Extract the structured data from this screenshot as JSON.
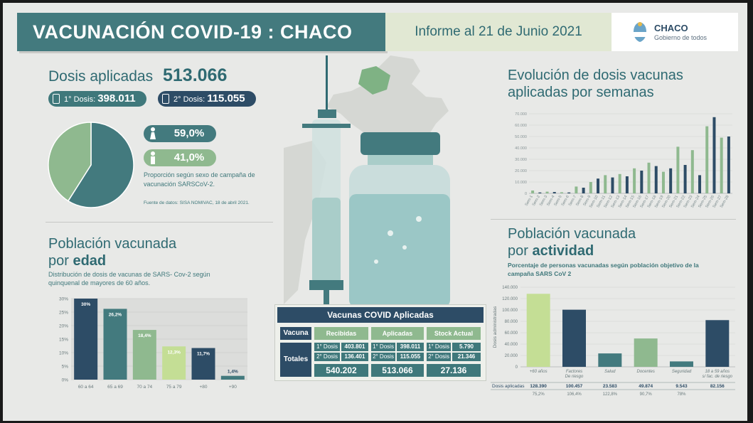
{
  "header": {
    "title": "VACUNACIÓN COVID-19 : CHACO",
    "date": "Informe al 21 de Junio 2021",
    "logo_name": "CHACO",
    "logo_sub": "Gobierno de todos"
  },
  "dosis": {
    "label": "Dosis aplicadas",
    "total": "513.066",
    "first_label": "1° Dosis:",
    "first_value": "398.011",
    "second_label": "2° Dosis:",
    "second_value": "115.055"
  },
  "sex": {
    "female_pct": "59,0%",
    "male_pct": "41,0%",
    "caption": "Proporción según sexo de campaña de vacunación SARSCoV-2.",
    "source": "Fuente de datos: SISA NOMIVAC, 18 de abril 2021."
  },
  "age": {
    "title_line1": "Población vacunada",
    "title_line2_pre": "por ",
    "title_line2_bold": "edad",
    "description": "Distribución de dosis de vacunas de SARS- Cov-2 según quinquenal de mayores de 60 años."
  },
  "vaccines_table": {
    "title": "Vacunas COVID Aplicadas",
    "col_vacuna": "Vacuna",
    "col_recibidas": "Recibidas",
    "col_aplicadas": "Aplicadas",
    "col_stock": "Stock Actual",
    "row_totales": "Totales",
    "d1_label": "1° Dosis",
    "d2_label": "2° Dosis",
    "recibidas_d1": "403.801",
    "recibidas_d2": "136.401",
    "aplicadas_d1": "398.011",
    "aplicadas_d2": "115.055",
    "stock_d1": "5.790",
    "stock_d2": "21.346",
    "recibidas_total": "540.202",
    "aplicadas_total": "513.066",
    "stock_total": "27.136"
  },
  "weekly": {
    "title": "Evolución de dosis vacunas aplicadas por semanas"
  },
  "activity": {
    "title_line1": "Población vacunada",
    "title_line2_pre": "por ",
    "title_line2_bold": "actividad",
    "description": "Porcentaje de personas vacunadas según población objetivo de la campaña SARS CoV 2",
    "table_header": "Dosis aplicadas",
    "ylabel": "Dosis administradas"
  },
  "colors": {
    "teal": "#437a7e",
    "navy": "#2d4c66",
    "green": "#8fb98f",
    "lime": "#c4de95",
    "mint": "#bfdcc4"
  },
  "chart_data": [
    {
      "type": "pie",
      "categories": [
        "Femenino",
        "Masculino"
      ],
      "values": [
        59.0,
        41.0
      ],
      "colors": [
        "#437a7e",
        "#8fb98f"
      ]
    },
    {
      "type": "bar",
      "categories": [
        "60 a 64",
        "65 a 69",
        "70 a 74",
        "75 a 79",
        "+80",
        "+90"
      ],
      "values": [
        30,
        26.2,
        18.4,
        12.3,
        11.7,
        1.4
      ],
      "labels": [
        "30%",
        "26,2%",
        "18,4%",
        "12,3%",
        "11,7%",
        "1,4%"
      ],
      "yticks": [
        "0%",
        "5%",
        "10%",
        "15%",
        "20%",
        "25%",
        "30%"
      ],
      "ylim": [
        0,
        30
      ]
    },
    {
      "type": "bar",
      "categories": [
        "Sem-1",
        "Sem-2",
        "Sem-3",
        "Sem-4",
        "Sem-5",
        "Sem-6",
        "Sem-7",
        "Sem-8",
        "Sem-9",
        "Sem-10",
        "Sem-11",
        "Sem-12",
        "Sem-13",
        "Sem-14",
        "Sem-15",
        "Sem-16",
        "Sem-17",
        "Sem-18",
        "Sem-19",
        "Sem-20",
        "Sem-21",
        "Sem-22",
        "Sem-23",
        "Sem-24",
        "Sem-25",
        "Sem-26",
        "Sem-27",
        "Sem-28"
      ],
      "values": [
        2500,
        800,
        1500,
        1200,
        1000,
        800,
        6000,
        5000,
        10000,
        13000,
        16000,
        14000,
        17000,
        15000,
        22000,
        20000,
        27000,
        24000,
        19000,
        22000,
        41000,
        25000,
        38000,
        16000,
        59000,
        67000,
        49000,
        50000
      ],
      "yticks": [
        "0",
        "10.000",
        "20.000",
        "30.000",
        "40.000",
        "50.000",
        "60.000",
        "70.000"
      ],
      "ylim": [
        0,
        70000
      ]
    },
    {
      "type": "bar",
      "categories": [
        "+60 años",
        "Factores De riesgo",
        "Salud",
        "Docentes",
        "Seguridad",
        "18 a 59 años s/ fac. de riesgo"
      ],
      "values": [
        128390,
        100457,
        23583,
        49874,
        9543,
        82156
      ],
      "value_labels": [
        "128.390",
        "100.457",
        "23.583",
        "49.874",
        "9.543",
        "82.156"
      ],
      "percent_labels": [
        "75,2%",
        "106,4%",
        "122,8%",
        "90,7%",
        "78%",
        ""
      ],
      "yticks": [
        "0",
        "20.000",
        "40.000",
        "60.000",
        "80.000",
        "100.000",
        "120.000",
        "140.000"
      ],
      "ylim": [
        0,
        140000
      ]
    }
  ]
}
